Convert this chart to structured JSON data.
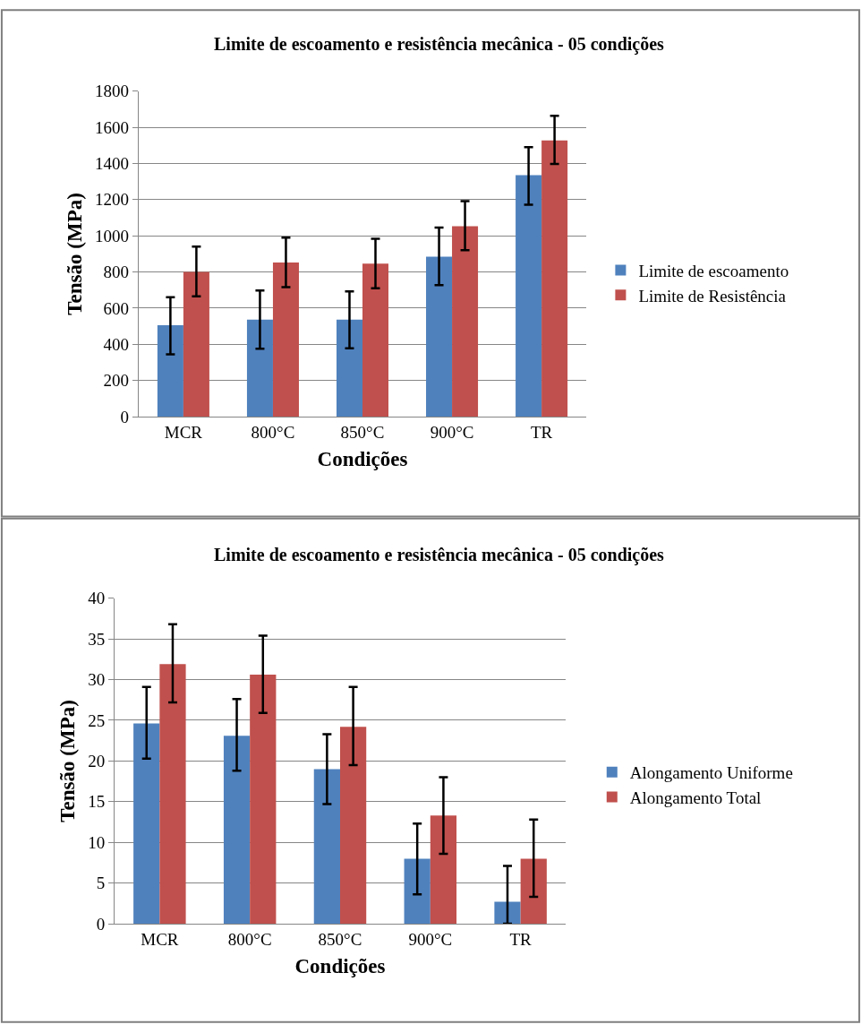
{
  "chart_data": [
    {
      "type": "bar",
      "title": "Limite de escoamento e resistência mecânica - 05 condições",
      "xlabel": "Condições",
      "ylabel": "Tensão (MPa)",
      "categories": [
        "MCR",
        "800°C",
        "850°C",
        "900°C",
        "TR"
      ],
      "series": [
        {
          "name": "Limite de escoamento",
          "color": "#4f81bd",
          "values": [
            505,
            537,
            537,
            885,
            1335
          ],
          "errors": [
            [
              345,
              660
            ],
            [
              375,
              698
            ],
            [
              378,
              692
            ],
            [
              727,
              1045
            ],
            [
              1172,
              1490
            ]
          ]
        },
        {
          "name": "Limite de Resistência",
          "color": "#c0504d",
          "values": [
            800,
            852,
            846,
            1053,
            1527
          ],
          "errors": [
            [
              665,
              940
            ],
            [
              716,
              990
            ],
            [
              710,
              984
            ],
            [
              920,
              1192
            ],
            [
              1397,
              1663
            ]
          ]
        }
      ],
      "ylim": [
        0,
        1800
      ],
      "yticks": [
        0,
        200,
        400,
        600,
        800,
        1000,
        1200,
        1400,
        1600,
        1800
      ],
      "grid": "y",
      "legend": "right"
    },
    {
      "type": "bar",
      "title": "Limite de escoamento e resistência mecânica - 05 condições",
      "xlabel": "Condições",
      "ylabel": "Tensão (MPa)",
      "categories": [
        "MCR",
        "800°C",
        "850°C",
        "900°C",
        "TR"
      ],
      "series": [
        {
          "name": "Alongamento Uniforme",
          "color": "#4f81bd",
          "values": [
            24.6,
            23.1,
            19.0,
            8.0,
            2.7
          ],
          "errors": [
            [
              20.3,
              29.1
            ],
            [
              18.8,
              27.6
            ],
            [
              14.7,
              23.3
            ],
            [
              3.6,
              12.3
            ],
            [
              0,
              7.1
            ]
          ]
        },
        {
          "name": "Alongamento Total",
          "color": "#c0504d",
          "values": [
            31.9,
            30.6,
            24.2,
            13.3,
            8.0
          ],
          "errors": [
            [
              27.2,
              36.8
            ],
            [
              25.9,
              35.4
            ],
            [
              19.5,
              29.1
            ],
            [
              8.6,
              18.0
            ],
            [
              3.3,
              12.8
            ]
          ]
        }
      ],
      "ylim": [
        0,
        40
      ],
      "yticks": [
        0,
        5,
        10,
        15,
        20,
        25,
        30,
        35,
        40
      ],
      "grid": "y",
      "legend": "right"
    }
  ]
}
